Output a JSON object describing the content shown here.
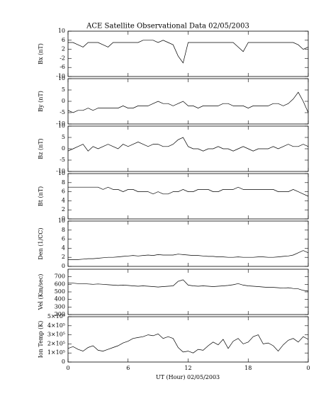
{
  "chart_data": [
    {
      "type": "line",
      "title": "ACE Satellite Observational Data   02/05/2003",
      "ylabel": "Bx (nT)",
      "color": "#000000",
      "x": [
        0,
        0.5,
        1,
        1.5,
        2,
        2.5,
        3,
        3.5,
        4,
        4.5,
        5,
        5.5,
        6,
        6.5,
        7,
        7.5,
        8,
        8.5,
        9,
        9.5,
        10,
        10.5,
        11,
        11.5,
        12,
        12.5,
        13,
        13.5,
        14,
        14.5,
        15,
        15.5,
        16,
        16.5,
        17,
        17.5,
        18,
        18.5,
        19,
        19.5,
        20,
        20.5,
        21,
        21.5,
        22,
        22.5,
        23,
        23.5,
        24
      ],
      "values": [
        5,
        5,
        4,
        3,
        5,
        5,
        5,
        4,
        3,
        5,
        5,
        5,
        5,
        5,
        5,
        6,
        6,
        6,
        5,
        6,
        5,
        4,
        -1,
        -4,
        5,
        5,
        5,
        5,
        5,
        5,
        5,
        5,
        5,
        5,
        3,
        1,
        5,
        5,
        5,
        5,
        5,
        5,
        5,
        5,
        5,
        5,
        4,
        2,
        3
      ],
      "xlim": [
        0,
        24
      ],
      "ylim": [
        -10,
        10
      ],
      "yticks": [
        -10,
        -6,
        -2,
        2,
        6,
        10
      ]
    },
    {
      "type": "line",
      "ylabel": "By (nT)",
      "color": "#000000",
      "x": [
        0,
        0.5,
        1,
        1.5,
        2,
        2.5,
        3,
        3.5,
        4,
        4.5,
        5,
        5.5,
        6,
        6.5,
        7,
        7.5,
        8,
        8.5,
        9,
        9.5,
        10,
        10.5,
        11,
        11.5,
        12,
        12.5,
        13,
        13.5,
        14,
        14.5,
        15,
        15.5,
        16,
        16.5,
        17,
        17.5,
        18,
        18.5,
        19,
        19.5,
        20,
        20.5,
        21,
        21.5,
        22,
        22.5,
        23,
        23.5,
        24
      ],
      "values": [
        -4,
        -5,
        -4,
        -4,
        -3,
        -4,
        -3,
        -3,
        -3,
        -3,
        -3,
        -2,
        -3,
        -3,
        -2,
        -2,
        -2,
        -1,
        0,
        -1,
        -1,
        -2,
        -1,
        0,
        -2,
        -2,
        -3,
        -2,
        -2,
        -2,
        -2,
        -1,
        -1,
        -2,
        -2,
        -2,
        -3,
        -2,
        -2,
        -2,
        -2,
        -1,
        -1,
        -2,
        -1,
        1,
        4,
        0,
        -5
      ],
      "xlim": [
        0,
        24
      ],
      "ylim": [
        -10,
        10
      ],
      "yticks": [
        -10,
        -5,
        0,
        5,
        10
      ]
    },
    {
      "type": "line",
      "ylabel": "Bz (nT)",
      "color": "#000000",
      "x": [
        0,
        0.5,
        1,
        1.5,
        2,
        2.5,
        3,
        3.5,
        4,
        4.5,
        5,
        5.5,
        6,
        6.5,
        7,
        7.5,
        8,
        8.5,
        9,
        9.5,
        10,
        10.5,
        11,
        11.5,
        12,
        12.5,
        13,
        13.5,
        14,
        14.5,
        15,
        15.5,
        16,
        16.5,
        17,
        17.5,
        18,
        18.5,
        19,
        19.5,
        20,
        20.5,
        21,
        21.5,
        22,
        22.5,
        23,
        23.5,
        24
      ],
      "values": [
        -1,
        0,
        1,
        2,
        -1,
        1,
        0,
        1,
        2,
        1,
        0,
        2,
        1,
        2,
        3,
        2,
        1,
        2,
        2,
        1,
        1,
        2,
        4,
        5,
        1,
        0,
        0,
        -1,
        0,
        0,
        1,
        0,
        0,
        -1,
        0,
        1,
        0,
        -1,
        0,
        0,
        0,
        1,
        0,
        1,
        2,
        1,
        1,
        2,
        1
      ],
      "xlim": [
        0,
        24
      ],
      "ylim": [
        -10,
        10
      ],
      "yticks": [
        -10,
        -5,
        0,
        5,
        10
      ]
    },
    {
      "type": "line",
      "ylabel": "Bt (nT)",
      "color": "#000000",
      "x": [
        0,
        0.5,
        1,
        1.5,
        2,
        2.5,
        3,
        3.5,
        4,
        4.5,
        5,
        5.5,
        6,
        6.5,
        7,
        7.5,
        8,
        8.5,
        9,
        9.5,
        10,
        10.5,
        11,
        11.5,
        12,
        12.5,
        13,
        13.5,
        14,
        14.5,
        15,
        15.5,
        16,
        16.5,
        17,
        17.5,
        18,
        18.5,
        19,
        19.5,
        20,
        20.5,
        21,
        21.5,
        22,
        22.5,
        23,
        23.5,
        24
      ],
      "values": [
        7,
        7,
        7,
        7,
        7,
        7,
        7,
        6.5,
        7,
        6.5,
        6.5,
        6,
        6.5,
        6.5,
        6,
        6,
        6,
        5.5,
        6,
        5.5,
        5.5,
        6,
        6,
        6.5,
        6,
        6,
        6.5,
        6.5,
        6.5,
        6,
        6,
        6.5,
        6.5,
        6.5,
        7,
        6.5,
        6.5,
        6.5,
        6.5,
        6.5,
        6.5,
        6.5,
        6,
        6,
        6,
        6.5,
        6,
        5.5,
        5
      ],
      "xlim": [
        0,
        24
      ],
      "ylim": [
        0,
        10
      ],
      "yticks": [
        0,
        2,
        4,
        6,
        8,
        10
      ]
    },
    {
      "type": "line",
      "ylabel": "Den (1/CC)",
      "color": "#000000",
      "x": [
        0,
        0.5,
        1,
        1.5,
        2,
        2.5,
        3,
        3.5,
        4,
        4.5,
        5,
        5.5,
        6,
        6.5,
        7,
        7.5,
        8,
        8.5,
        9,
        9.5,
        10,
        10.5,
        11,
        11.5,
        12,
        12.5,
        13,
        13.5,
        14,
        14.5,
        15,
        15.5,
        16,
        16.5,
        17,
        17.5,
        18,
        18.5,
        19,
        19.5,
        20,
        20.5,
        21,
        21.5,
        22,
        22.5,
        23,
        23.5,
        24
      ],
      "values": [
        1.5,
        1.5,
        1.5,
        1.6,
        1.7,
        1.7,
        1.8,
        1.9,
        2,
        2,
        2.1,
        2.2,
        2.3,
        2.4,
        2.3,
        2.4,
        2.5,
        2.4,
        2.6,
        2.5,
        2.5,
        2.5,
        2.7,
        2.6,
        2.5,
        2.4,
        2.4,
        2.3,
        2.2,
        2.2,
        2.1,
        2.1,
        2,
        2,
        2.1,
        2,
        2,
        2,
        2.1,
        2.1,
        2,
        2,
        2.1,
        2.2,
        2.3,
        2.5,
        3,
        3.5,
        3
      ],
      "xlim": [
        0,
        24
      ],
      "ylim": [
        0,
        10
      ],
      "yticks": [
        0,
        2,
        4,
        6,
        8,
        10
      ]
    },
    {
      "type": "line",
      "ylabel": "Vel (Km/sec)",
      "color": "#000000",
      "x": [
        0,
        0.5,
        1,
        1.5,
        2,
        2.5,
        3,
        3.5,
        4,
        4.5,
        5,
        5.5,
        6,
        6.5,
        7,
        7.5,
        8,
        8.5,
        9,
        9.5,
        10,
        10.5,
        11,
        11.5,
        12,
        12.5,
        13,
        13.5,
        14,
        14.5,
        15,
        15.5,
        16,
        16.5,
        17,
        17.5,
        18,
        18.5,
        19,
        19.5,
        20,
        20.5,
        21,
        21.5,
        22,
        22.5,
        23,
        23.5,
        24
      ],
      "values": [
        620,
        615,
        610,
        610,
        605,
        600,
        605,
        600,
        595,
        590,
        585,
        590,
        585,
        580,
        575,
        580,
        575,
        570,
        565,
        570,
        575,
        580,
        640,
        660,
        590,
        580,
        575,
        580,
        575,
        570,
        575,
        580,
        585,
        595,
        610,
        590,
        580,
        575,
        570,
        565,
        560,
        560,
        555,
        550,
        555,
        545,
        540,
        520,
        510
      ],
      "xlim": [
        0,
        24
      ],
      "ylim": [
        200,
        800
      ],
      "yticks": [
        200,
        300,
        400,
        500,
        600,
        700
      ]
    },
    {
      "type": "line",
      "ylabel": "Ion Temp (K)",
      "xlabel": "UT (Hour)   02/05/2003",
      "color": "#000000",
      "x": [
        0,
        0.5,
        1,
        1.5,
        2,
        2.5,
        3,
        3.5,
        4,
        4.5,
        5,
        5.5,
        6,
        6.5,
        7,
        7.5,
        8,
        8.5,
        9,
        9.5,
        10,
        10.5,
        11,
        11.5,
        12,
        12.5,
        13,
        13.5,
        14,
        14.5,
        15,
        15.5,
        16,
        16.5,
        17,
        17.5,
        18,
        18.5,
        19,
        19.5,
        20,
        20.5,
        21,
        21.5,
        22,
        22.5,
        23,
        23.5,
        24
      ],
      "values": [
        150000,
        170000,
        140000,
        120000,
        160000,
        180000,
        130000,
        120000,
        140000,
        160000,
        180000,
        210000,
        230000,
        260000,
        270000,
        280000,
        300000,
        290000,
        310000,
        260000,
        280000,
        260000,
        160000,
        110000,
        120000,
        100000,
        140000,
        130000,
        180000,
        220000,
        190000,
        250000,
        150000,
        230000,
        260000,
        200000,
        220000,
        280000,
        300000,
        200000,
        210000,
        180000,
        120000,
        190000,
        240000,
        260000,
        220000,
        280000,
        250000
      ],
      "xlim": [
        0,
        24
      ],
      "ylim": [
        0,
        500000
      ],
      "yticks": [
        0,
        {
          "value": 100000,
          "label": "1×10⁵"
        },
        {
          "value": 200000,
          "label": "2×10⁵"
        },
        {
          "value": 300000,
          "label": "3×10⁵"
        },
        {
          "value": 400000,
          "label": "4×10⁵"
        },
        {
          "value": 500000,
          "label": "5×10⁵"
        }
      ],
      "xticks": [
        0,
        6,
        12,
        18,
        {
          "value": 24,
          "label": "0"
        }
      ]
    }
  ]
}
